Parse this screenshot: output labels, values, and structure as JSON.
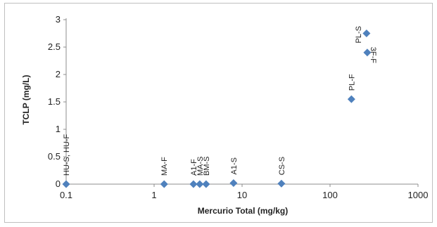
{
  "chart_data": {
    "type": "scatter",
    "title": "",
    "xlabel": "Mercurio Total (mg/kg)",
    "ylabel": "TCLP (mg/L)",
    "x_scale": "log",
    "xlim": [
      0.1,
      1000
    ],
    "ylim": [
      0,
      3
    ],
    "x_ticks": [
      0.1,
      1,
      10,
      100,
      1000
    ],
    "x_tick_labels": [
      "0.1",
      "1",
      "10",
      "100",
      "1000"
    ],
    "y_ticks": [
      0,
      0.5,
      1,
      1.5,
      2,
      2.5,
      3
    ],
    "y_tick_labels": [
      "0",
      "0.5",
      "1",
      "1.5",
      "2",
      "2.5",
      "3"
    ],
    "grid": false,
    "legend": false,
    "marker": "diamond",
    "marker_color": "#4f81bd",
    "points": [
      {
        "label": "HU-S, HU-F",
        "x": 0.1,
        "y": 0
      },
      {
        "label": "MA-F",
        "x": 1.3,
        "y": 0
      },
      {
        "label": "A1-F",
        "x": 2.8,
        "y": 0
      },
      {
        "label": "MA-S",
        "x": 3.3,
        "y": 0
      },
      {
        "label": "BM-S",
        "x": 3.9,
        "y": 0
      },
      {
        "label": "A1-S",
        "x": 8,
        "y": 0.02
      },
      {
        "label": "CS-S",
        "x": 28,
        "y": 0.01
      },
      {
        "label": "PL-F",
        "x": 175,
        "y": 1.55
      },
      {
        "label": "PL-S",
        "x": 260,
        "y": 2.75
      },
      {
        "label": "3F-F",
        "x": 265,
        "y": 2.4
      }
    ]
  }
}
